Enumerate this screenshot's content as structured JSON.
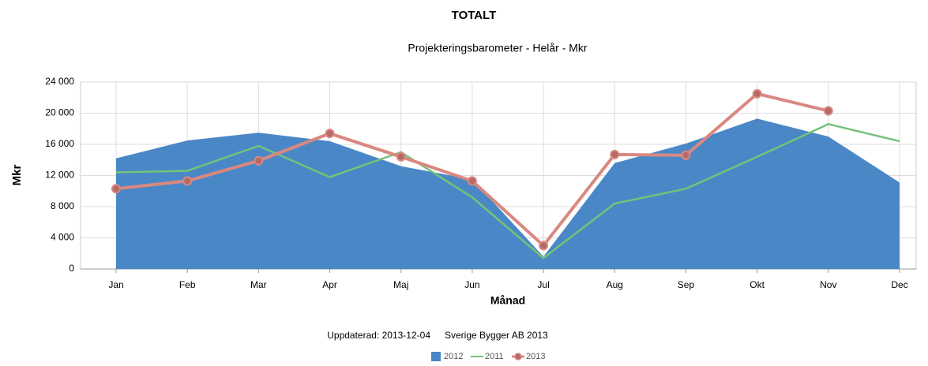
{
  "chart_data": {
    "type": "line",
    "title": "TOTALT",
    "subtitle": "Projekteringsbarometer - Helår - Mkr",
    "y_label": "Mkr",
    "x_label": "Månad",
    "footer": [
      "Uppdaterad: 2013-12-04",
      "Sverige Bygger AB 2013"
    ],
    "categories": [
      "Jan",
      "Feb",
      "Mar",
      "Apr",
      "Maj",
      "Jun",
      "Jul",
      "Aug",
      "Sep",
      "Okt",
      "Nov",
      "Dec"
    ],
    "series": [
      {
        "name": "2012",
        "kind": "area",
        "color": "#4a87c7",
        "values": [
          14200,
          16500,
          17500,
          16400,
          13200,
          11500,
          1600,
          13600,
          16100,
          19300,
          17000,
          11100
        ]
      },
      {
        "name": "2011",
        "kind": "line",
        "color": "#74c27a",
        "values": [
          12400,
          12600,
          15800,
          11800,
          15000,
          9200,
          1400,
          8400,
          10300,
          14400,
          18600,
          16400
        ]
      },
      {
        "name": "2013",
        "kind": "marker-line",
        "color": "#d98880",
        "values": [
          10300,
          11300,
          13900,
          17400,
          14400,
          11300,
          3000,
          14700,
          14600,
          22500,
          20300,
          null
        ]
      }
    ],
    "ylim": [
      0,
      24000
    ],
    "yticks": [
      0,
      {
        "value": 4000,
        "label": "4 000"
      },
      {
        "value": 8000,
        "label": "8 000"
      },
      {
        "value": 12000,
        "label": "12 000"
      },
      {
        "value": 16000,
        "label": "16 000"
      },
      {
        "value": 20000,
        "label": "20 000"
      },
      {
        "value": 24000,
        "label": "24 000"
      }
    ],
    "grid": true
  }
}
